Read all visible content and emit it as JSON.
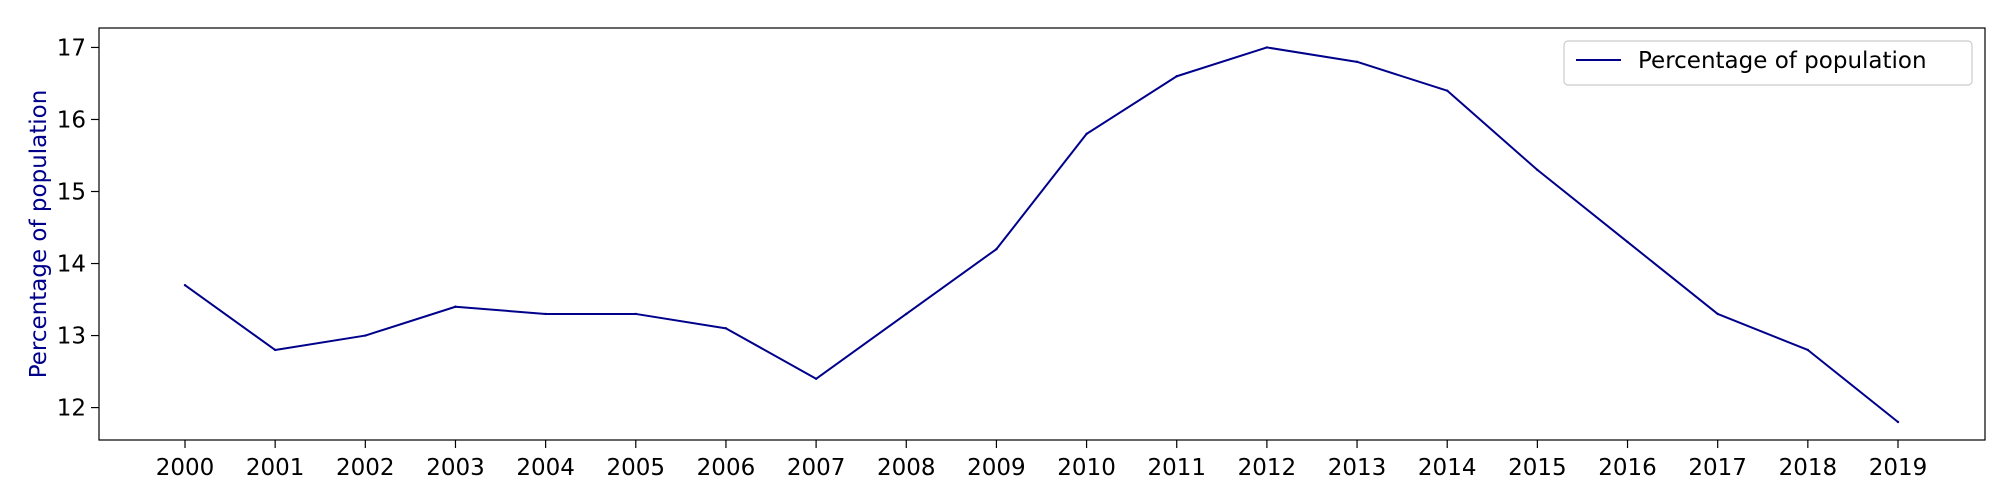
{
  "chart_data": {
    "type": "line",
    "title": "",
    "xlabel": "",
    "ylabel": "Percentage of population",
    "x": [
      "2000",
      "2001",
      "2002",
      "2003",
      "2004",
      "2005",
      "2006",
      "2007",
      "2008",
      "2009",
      "2010",
      "2011",
      "2012",
      "2013",
      "2014",
      "2015",
      "2016",
      "2017",
      "2018",
      "2019"
    ],
    "series": [
      {
        "name": "Percentage of population",
        "color": "#00008b",
        "values": [
          13.7,
          12.8,
          13.0,
          13.4,
          13.3,
          13.3,
          13.1,
          12.4,
          13.3,
          14.2,
          15.8,
          16.6,
          17.0,
          16.8,
          16.4,
          15.3,
          14.3,
          13.3,
          12.8,
          11.8
        ]
      }
    ],
    "yticks": [
      12,
      13,
      14,
      15,
      16,
      17
    ],
    "ylim": [
      11.55,
      17.27
    ],
    "grid": false,
    "legend": "top-right"
  }
}
